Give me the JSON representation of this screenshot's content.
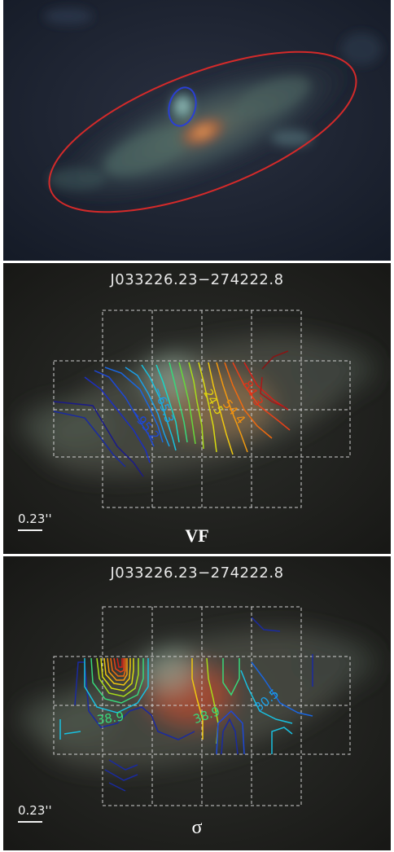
{
  "panel_top": {
    "ellipse_outer_color": "#d42a2a",
    "ellipse_inner_color": "#2a3fd4"
  },
  "panel_vf": {
    "object_id": "J033226.23−274222.8",
    "scale_label": "0.23''",
    "map_label": "VF",
    "contour_labels": [
      "−95.2",
      "−65.3",
      "24.5",
      "54.4",
      "84.3"
    ],
    "grid_color": "#cfcfcf"
  },
  "panel_sigma": {
    "object_id": "J033226.23−274222.8",
    "scale_label": "0.23''",
    "map_label": "σ",
    "contour_labels": [
      "38.9",
      "38.9",
      "30.5"
    ],
    "grid_color": "#cfcfcf"
  }
}
